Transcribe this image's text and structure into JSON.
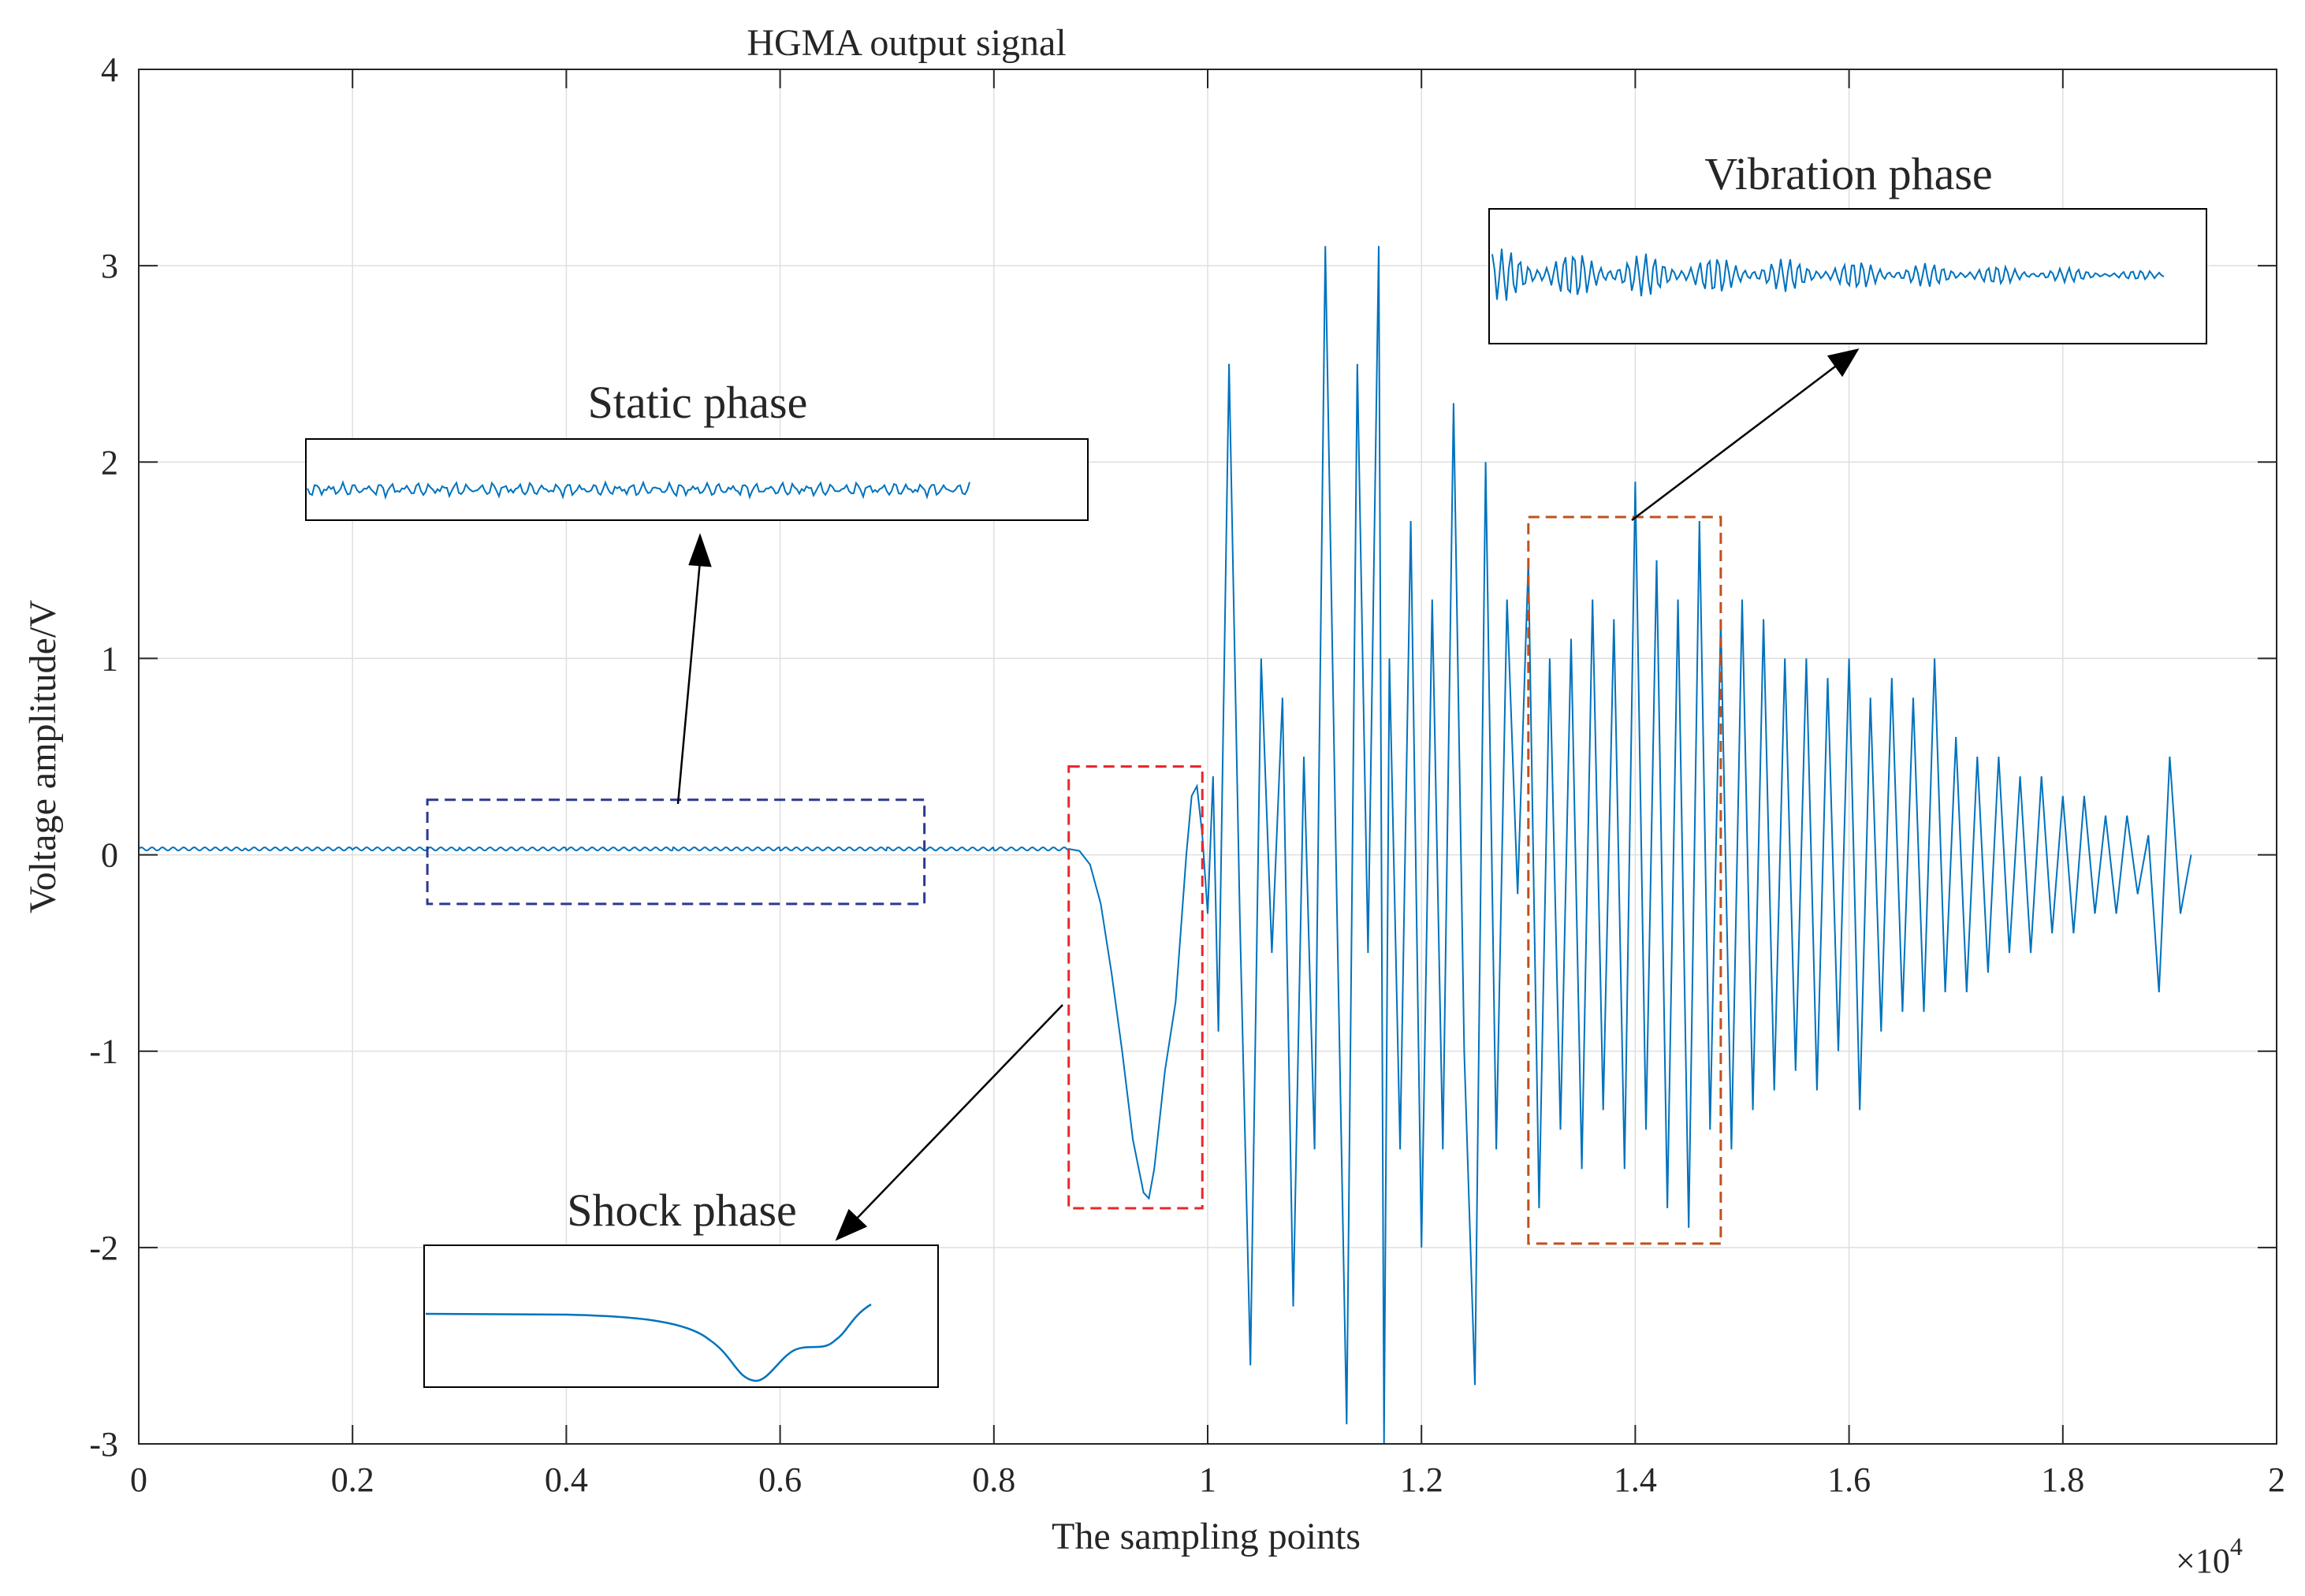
{
  "chart_data": {
    "type": "line",
    "title": "HGMA output signal",
    "xlabel": "The sampling points",
    "ylabel": "Voltage amplitude/V",
    "x_scale": {
      "base": "×10",
      "exponent": "4"
    },
    "xlim": [
      0,
      2
    ],
    "ylim": [
      -3,
      4
    ],
    "grid": true,
    "x_ticks": [
      0,
      0.2,
      0.4,
      0.6,
      0.8,
      1,
      1.2,
      1.4,
      1.6,
      1.8,
      2
    ],
    "x_tick_labels": [
      "0",
      "0.2",
      "0.4",
      "0.6",
      "0.8",
      "1",
      "1.2",
      "1.4",
      "1.6",
      "1.8",
      "2"
    ],
    "y_ticks": [
      4,
      3,
      2,
      1,
      0,
      -1,
      -2,
      -3
    ],
    "y_tick_labels": [
      "4",
      "3",
      "2",
      "1",
      "0",
      "-1",
      "-2",
      "-3"
    ],
    "series": [
      {
        "name": "HGMA output",
        "color": "#0072BD",
        "points": [
          [
            0,
            0.03
          ],
          [
            0.1,
            0.03
          ],
          [
            0.2,
            0.03
          ],
          [
            0.3,
            0.03
          ],
          [
            0.4,
            0.03
          ],
          [
            0.5,
            0.03
          ],
          [
            0.6,
            0.03
          ],
          [
            0.7,
            0.03
          ],
          [
            0.8,
            0.03
          ],
          [
            0.87,
            0.03
          ],
          [
            0.88,
            0.02
          ],
          [
            0.89,
            -0.05
          ],
          [
            0.9,
            -0.25
          ],
          [
            0.91,
            -0.6
          ],
          [
            0.92,
            -1.0
          ],
          [
            0.93,
            -1.45
          ],
          [
            0.94,
            -1.72
          ],
          [
            0.945,
            -1.75
          ],
          [
            0.95,
            -1.6
          ],
          [
            0.96,
            -1.1
          ],
          [
            0.97,
            -0.75
          ],
          [
            0.98,
            0.0
          ],
          [
            0.985,
            0.3
          ],
          [
            0.99,
            0.35
          ],
          [
            0.995,
            0.1
          ],
          [
            1.0,
            -0.3
          ],
          [
            1.005,
            0.4
          ],
          [
            1.01,
            -0.9
          ],
          [
            1.02,
            2.5
          ],
          [
            1.03,
            -0.3
          ],
          [
            1.04,
            -2.6
          ],
          [
            1.05,
            1.0
          ],
          [
            1.06,
            -0.5
          ],
          [
            1.07,
            0.8
          ],
          [
            1.08,
            -2.3
          ],
          [
            1.09,
            0.5
          ],
          [
            1.1,
            -1.5
          ],
          [
            1.11,
            3.1
          ],
          [
            1.12,
            0.0
          ],
          [
            1.13,
            -2.9
          ],
          [
            1.14,
            2.5
          ],
          [
            1.15,
            -0.5
          ],
          [
            1.16,
            3.1
          ],
          [
            1.165,
            -3.0
          ],
          [
            1.17,
            1.0
          ],
          [
            1.18,
            -1.5
          ],
          [
            1.19,
            1.7
          ],
          [
            1.2,
            -2.0
          ],
          [
            1.21,
            1.3
          ],
          [
            1.22,
            -1.5
          ],
          [
            1.23,
            2.3
          ],
          [
            1.24,
            -1.0
          ],
          [
            1.25,
            -2.7
          ],
          [
            1.26,
            2.0
          ],
          [
            1.27,
            -1.5
          ],
          [
            1.28,
            1.3
          ],
          [
            1.29,
            -0.2
          ],
          [
            1.3,
            1.5
          ],
          [
            1.31,
            -1.8
          ],
          [
            1.32,
            1.0
          ],
          [
            1.33,
            -1.4
          ],
          [
            1.34,
            1.1
          ],
          [
            1.35,
            -1.6
          ],
          [
            1.36,
            1.3
          ],
          [
            1.37,
            -1.3
          ],
          [
            1.38,
            1.2
          ],
          [
            1.39,
            -1.6
          ],
          [
            1.4,
            1.9
          ],
          [
            1.41,
            -1.4
          ],
          [
            1.42,
            1.5
          ],
          [
            1.43,
            -1.8
          ],
          [
            1.44,
            1.3
          ],
          [
            1.45,
            -1.9
          ],
          [
            1.46,
            1.7
          ],
          [
            1.47,
            -1.4
          ],
          [
            1.48,
            1.2
          ],
          [
            1.49,
            -1.5
          ],
          [
            1.5,
            1.3
          ],
          [
            1.51,
            -1.3
          ],
          [
            1.52,
            1.2
          ],
          [
            1.53,
            -1.2
          ],
          [
            1.54,
            1.0
          ],
          [
            1.55,
            -1.1
          ],
          [
            1.56,
            1.0
          ],
          [
            1.57,
            -1.2
          ],
          [
            1.58,
            0.9
          ],
          [
            1.59,
            -1.0
          ],
          [
            1.6,
            1.0
          ],
          [
            1.61,
            -1.3
          ],
          [
            1.62,
            0.8
          ],
          [
            1.63,
            -0.9
          ],
          [
            1.64,
            0.9
          ],
          [
            1.65,
            -0.8
          ],
          [
            1.66,
            0.8
          ],
          [
            1.67,
            -0.8
          ],
          [
            1.68,
            1.0
          ],
          [
            1.69,
            -0.7
          ],
          [
            1.7,
            0.6
          ],
          [
            1.71,
            -0.7
          ],
          [
            1.72,
            0.5
          ],
          [
            1.73,
            -0.6
          ],
          [
            1.74,
            0.5
          ],
          [
            1.75,
            -0.5
          ],
          [
            1.76,
            0.4
          ],
          [
            1.77,
            -0.5
          ],
          [
            1.78,
            0.4
          ],
          [
            1.79,
            -0.4
          ],
          [
            1.8,
            0.3
          ],
          [
            1.81,
            -0.4
          ],
          [
            1.82,
            0.3
          ],
          [
            1.83,
            -0.3
          ],
          [
            1.84,
            0.2
          ],
          [
            1.85,
            -0.3
          ],
          [
            1.86,
            0.2
          ],
          [
            1.87,
            -0.2
          ],
          [
            1.88,
            0.1
          ],
          [
            1.89,
            -0.7
          ],
          [
            1.9,
            0.5
          ],
          [
            1.91,
            -0.3
          ],
          [
            1.92,
            0.0
          ]
        ]
      }
    ],
    "annotations": [
      {
        "label": "Static phase",
        "region_x": [
          0.27,
          0.735
        ],
        "region_y": [
          -0.25,
          0.28
        ],
        "color": "#2B3990",
        "inset_signal": "noisy flat line"
      },
      {
        "label": "Shock phase",
        "region_x": [
          0.87,
          0.995
        ],
        "region_y": [
          -1.8,
          0.45
        ],
        "color": "#E8282B",
        "inset_signal": "dip and recovery"
      },
      {
        "label": "Vibration phase",
        "region_x": [
          1.3,
          1.48
        ],
        "region_y": [
          -1.98,
          1.72
        ],
        "color": "#C0501C",
        "inset_signal": "decaying oscillation"
      }
    ]
  }
}
